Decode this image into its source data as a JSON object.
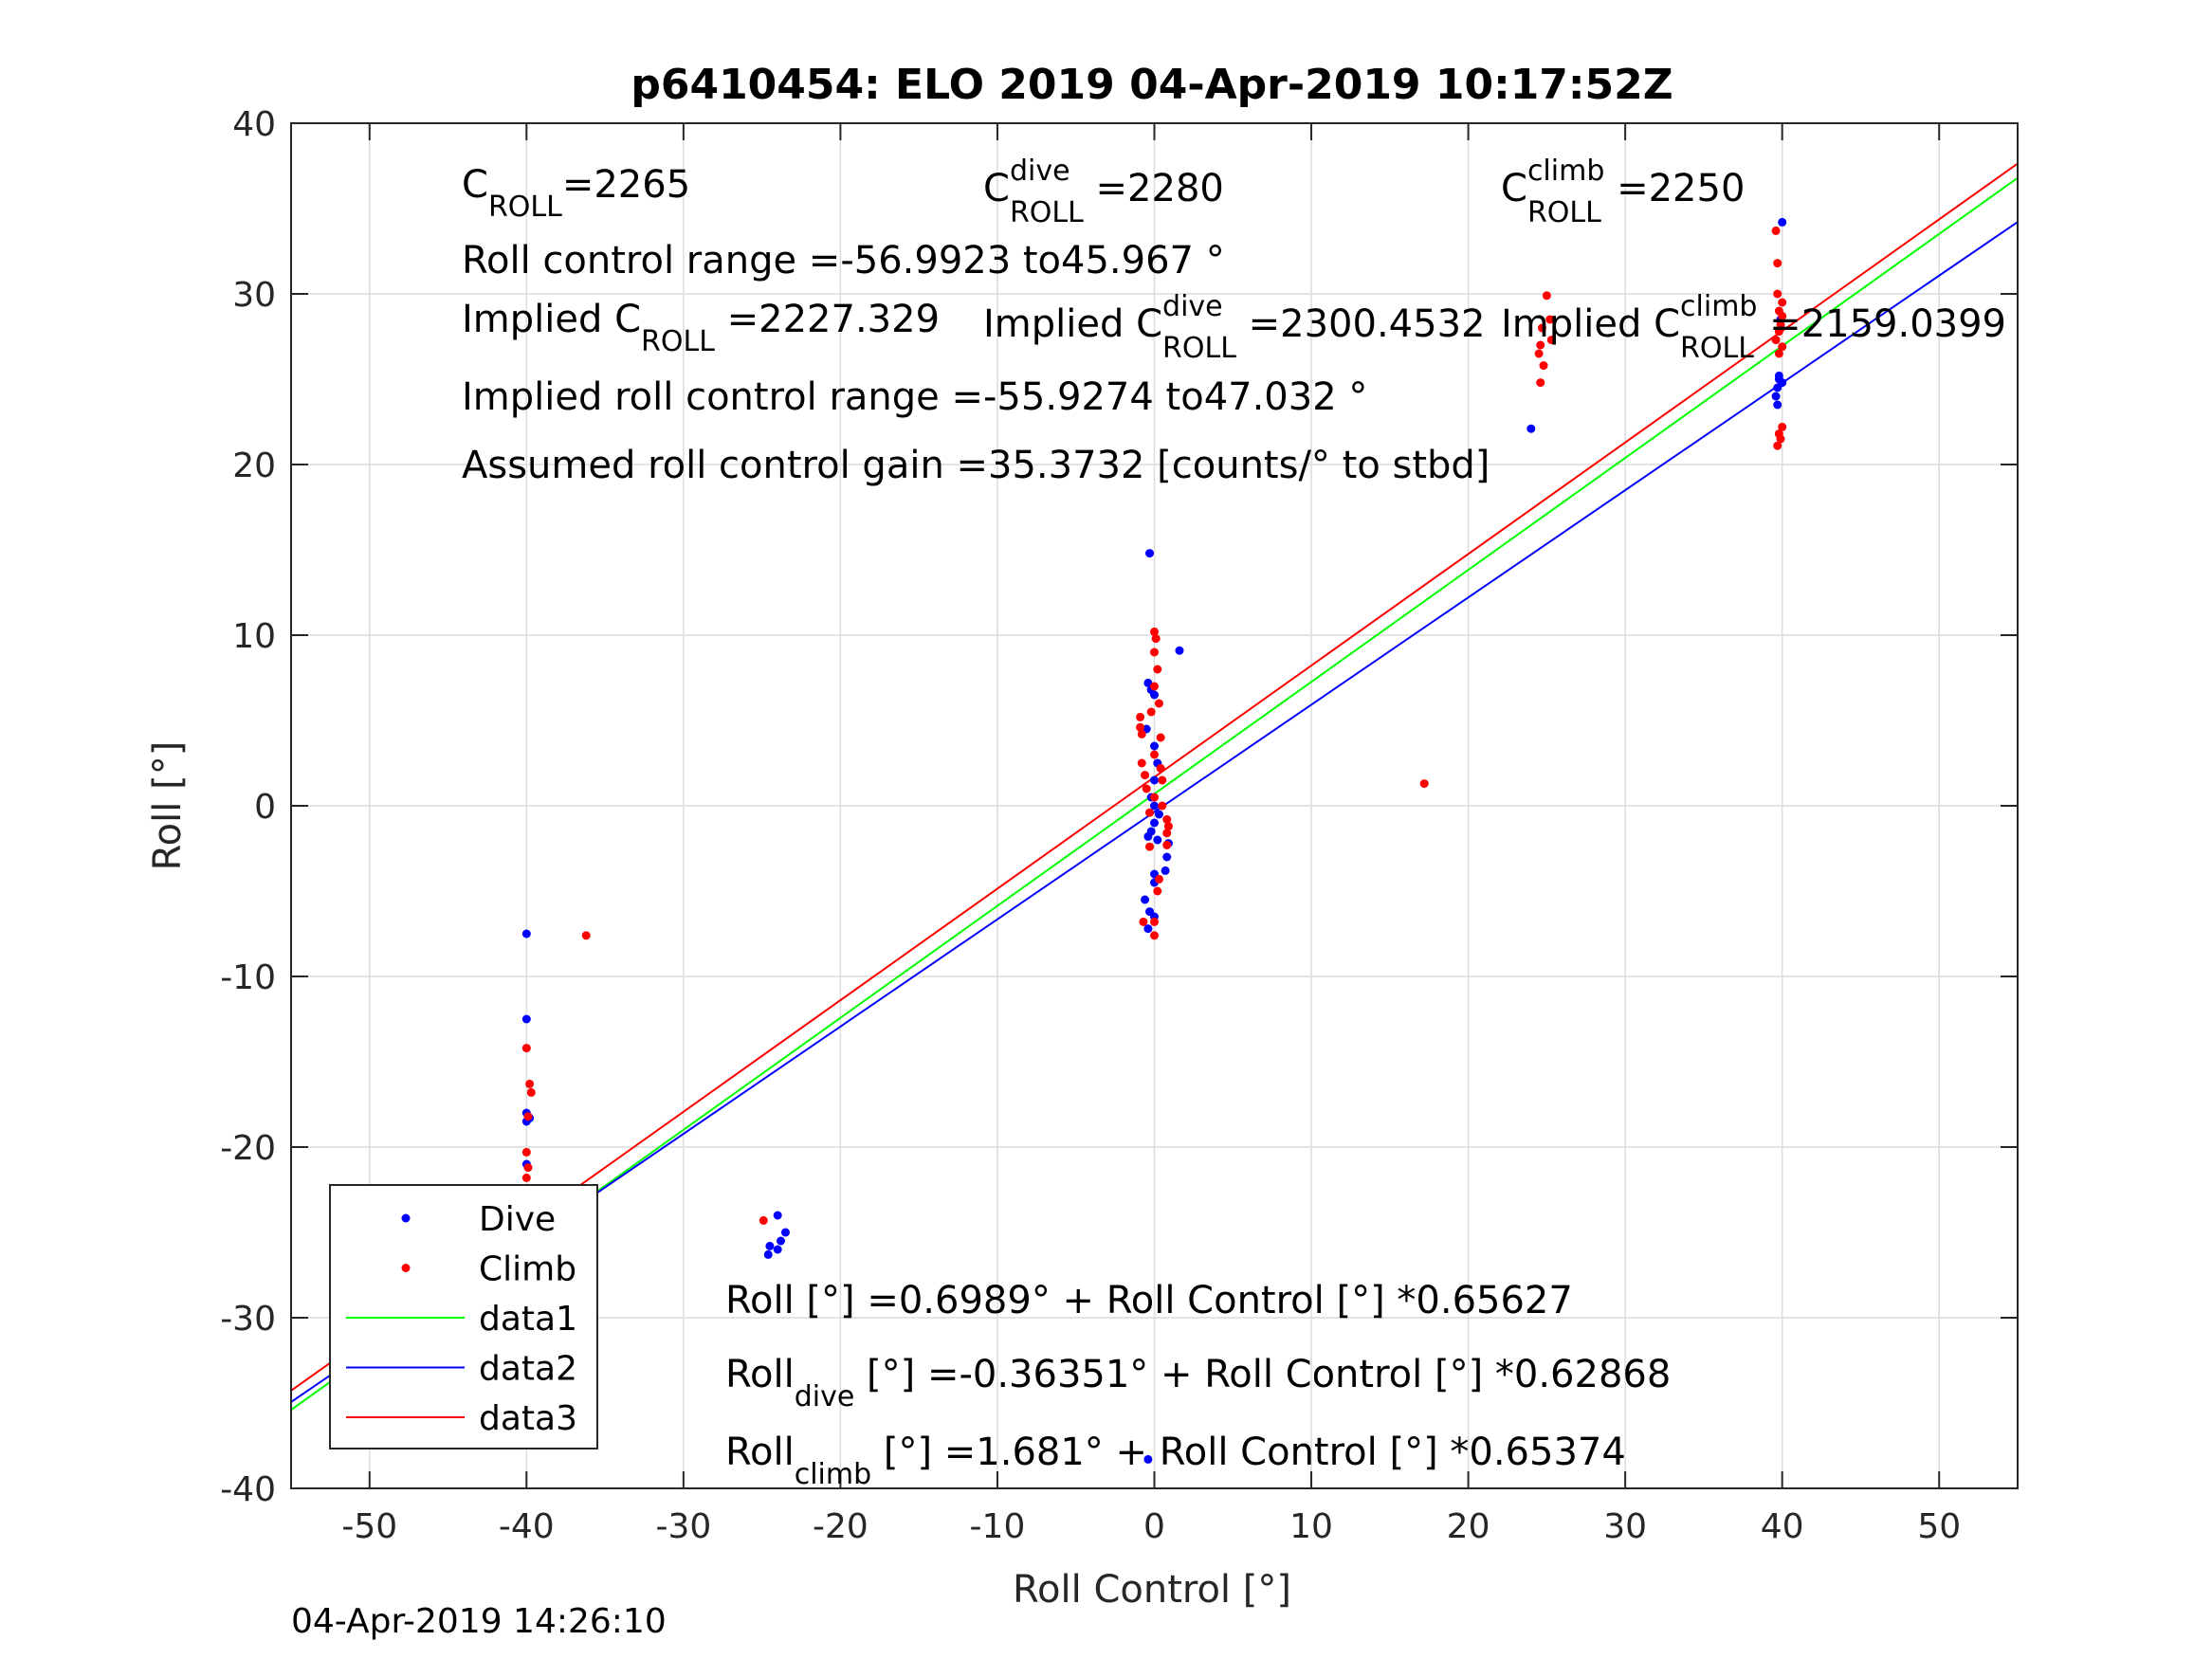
{
  "chart_data": {
    "type": "scatter",
    "title": "p6410454: ELO 2019 04-Apr-2019 10:17:52Z",
    "xlabel": "Roll Control [°]",
    "ylabel": "Roll [°]",
    "xlim": [
      -55,
      55
    ],
    "ylim": [
      -40,
      40
    ],
    "xticks": [
      -50,
      -40,
      -30,
      -20,
      -10,
      0,
      10,
      20,
      30,
      40,
      50
    ],
    "yticks": [
      -40,
      -30,
      -20,
      -10,
      0,
      10,
      20,
      30,
      40
    ],
    "grid": true,
    "legend_position": "bottom-left",
    "series": [
      {
        "name": "Dive",
        "kind": "points",
        "color": "#0000ff",
        "points": [
          [
            -40,
            -7.5
          ],
          [
            -40,
            -12.5
          ],
          [
            -40,
            -18
          ],
          [
            -40,
            -18.5
          ],
          [
            -39.8,
            -18.3
          ],
          [
            -40,
            -21
          ],
          [
            -40,
            -22.5
          ],
          [
            -40,
            -23
          ],
          [
            -40,
            -24
          ],
          [
            -40,
            -24.5
          ],
          [
            -40,
            -25
          ],
          [
            -39.8,
            -25.5
          ],
          [
            -40,
            -26
          ],
          [
            -40,
            -26.5
          ],
          [
            -39.9,
            -27
          ],
          [
            -40,
            -27.5
          ],
          [
            -24,
            -24
          ],
          [
            -24.5,
            -25.8
          ],
          [
            -23.8,
            -25.5
          ],
          [
            -24,
            -26
          ],
          [
            -24.6,
            -26.3
          ],
          [
            -23.5,
            -25
          ],
          [
            -0.3,
            14.8
          ],
          [
            1.6,
            9.1
          ],
          [
            -0.4,
            7.2
          ],
          [
            -0.2,
            6.8
          ],
          [
            0,
            6.5
          ],
          [
            -0.5,
            4.5
          ],
          [
            0,
            3.5
          ],
          [
            0.2,
            2.5
          ],
          [
            0,
            1.5
          ],
          [
            -0.2,
            0.5
          ],
          [
            0,
            0
          ],
          [
            0.3,
            -0.5
          ],
          [
            0,
            -1
          ],
          [
            -0.2,
            -1.5
          ],
          [
            0.2,
            -2
          ],
          [
            -0.4,
            -1.8
          ],
          [
            0.9,
            -2.2
          ],
          [
            0.8,
            -3
          ],
          [
            0.7,
            -3.8
          ],
          [
            0,
            -4
          ],
          [
            0,
            -4.5
          ],
          [
            -0.6,
            -5.5
          ],
          [
            -0.3,
            -6.2
          ],
          [
            0,
            -6.5
          ],
          [
            -0.4,
            -7.2
          ],
          [
            -0.4,
            -38.3
          ],
          [
            24,
            22.1
          ],
          [
            40,
            34.2
          ],
          [
            39.9,
            28.5
          ],
          [
            39.8,
            25
          ],
          [
            39.7,
            24.5
          ],
          [
            40,
            24.8
          ],
          [
            39.6,
            24
          ],
          [
            39.7,
            23.5
          ],
          [
            39.8,
            25.2
          ]
        ]
      },
      {
        "name": "Climb",
        "kind": "points",
        "color": "#ff0000",
        "points": [
          [
            -36.2,
            -7.6
          ],
          [
            -40,
            -14.2
          ],
          [
            -39.8,
            -16.3
          ],
          [
            -39.7,
            -16.8
          ],
          [
            -39.9,
            -18.2
          ],
          [
            -40,
            -20.3
          ],
          [
            -39.9,
            -21.2
          ],
          [
            -40,
            -21.8
          ],
          [
            -40,
            -22.5
          ],
          [
            -39.8,
            -23.2
          ],
          [
            -39.7,
            -24.2
          ],
          [
            -40,
            -25
          ],
          [
            -39.9,
            -25.8
          ],
          [
            -39.8,
            -26.5
          ],
          [
            -24.9,
            -24.3
          ],
          [
            0,
            10.2
          ],
          [
            0.1,
            9.8
          ],
          [
            0,
            9
          ],
          [
            0.2,
            8
          ],
          [
            0,
            7
          ],
          [
            0.3,
            6
          ],
          [
            -0.2,
            5.5
          ],
          [
            -0.9,
            5.2
          ],
          [
            -0.9,
            4.6
          ],
          [
            -0.8,
            4.2
          ],
          [
            0.4,
            4
          ],
          [
            0,
            3
          ],
          [
            -0.8,
            2.5
          ],
          [
            0.4,
            2.2
          ],
          [
            -0.6,
            1.8
          ],
          [
            0.5,
            1.5
          ],
          [
            -0.5,
            1
          ],
          [
            0,
            0.5
          ],
          [
            0.5,
            0
          ],
          [
            -0.3,
            -0.4
          ],
          [
            0.8,
            -0.8
          ],
          [
            0.9,
            -1.2
          ],
          [
            0.8,
            -1.6
          ],
          [
            -0.3,
            -2.4
          ],
          [
            0.8,
            -2.3
          ],
          [
            0.3,
            -4.3
          ],
          [
            0.2,
            -5
          ],
          [
            0,
            -6.8
          ],
          [
            -0.7,
            -6.8
          ],
          [
            0,
            -7.6
          ],
          [
            17.2,
            1.3
          ],
          [
            25,
            29.9
          ],
          [
            24.7,
            28
          ],
          [
            25.2,
            28.5
          ],
          [
            24.6,
            27
          ],
          [
            24.5,
            26.5
          ],
          [
            24.8,
            25.8
          ],
          [
            24.6,
            24.8
          ],
          [
            25.3,
            27.3
          ],
          [
            39.6,
            33.7
          ],
          [
            39.7,
            31.8
          ],
          [
            39.7,
            30
          ],
          [
            40,
            29.5
          ],
          [
            39.8,
            29
          ],
          [
            40,
            28.7
          ],
          [
            39.9,
            28.2
          ],
          [
            39.8,
            27.8
          ],
          [
            39.6,
            27.3
          ],
          [
            40,
            26.9
          ],
          [
            39.8,
            26.5
          ],
          [
            40,
            22.2
          ],
          [
            39.8,
            21.8
          ],
          [
            39.9,
            21.5
          ],
          [
            39.7,
            21.1
          ]
        ]
      },
      {
        "name": "data1",
        "kind": "line",
        "color": "#00ff00",
        "x": [
          -55,
          55
        ],
        "y": [
          -35.396,
          36.794
        ]
      },
      {
        "name": "data2",
        "kind": "line",
        "color": "#0000ff",
        "x": [
          -55,
          55
        ],
        "y": [
          -34.941,
          34.214
        ]
      },
      {
        "name": "data3",
        "kind": "line",
        "color": "#ff0000",
        "x": [
          -55,
          55
        ],
        "y": [
          -34.275,
          37.637
        ]
      }
    ],
    "annotations": {
      "c_roll": {
        "prefix": "C",
        "sub": "ROLL",
        "rest": "=2265"
      },
      "c_roll_dive": {
        "prefix": "C",
        "sup": "dive",
        "sub": "ROLL",
        "rest": " =2280"
      },
      "c_roll_climb": {
        "prefix": "C",
        "sup": "climb",
        "sub": "ROLL",
        "rest": " =2250"
      },
      "control_range": "Roll control range =-56.9923 to45.967 °",
      "implied_c_roll": {
        "prefix": "Implied C",
        "sub": "ROLL",
        "rest": " =2227.329"
      },
      "implied_c_dive": {
        "prefix": "Implied C",
        "sup": "dive",
        "sub": "ROLL",
        "rest": " =2300.4532"
      },
      "implied_c_climb": {
        "prefix": "Implied C",
        "sup": "climb",
        "sub": "ROLL",
        "rest": " =2159.0399"
      },
      "implied_range": "Implied roll control range =-55.9274 to47.032 °",
      "gain": "Assumed roll control gain =35.3732 [counts/° to stbd]",
      "fit_all": "Roll [°] =0.6989° + Roll Control [°] *0.65627",
      "fit_dive": {
        "prefix": "Roll",
        "sub": "dive",
        "rest": " [°] =-0.36351° + Roll Control [°] *0.62868"
      },
      "fit_climb": {
        "prefix": "Roll",
        "sub": "climb",
        "rest": " [°] =1.681° + Roll Control [°] *0.65374"
      }
    }
  },
  "footer_timestamp": "04-Apr-2019 14:26:10"
}
